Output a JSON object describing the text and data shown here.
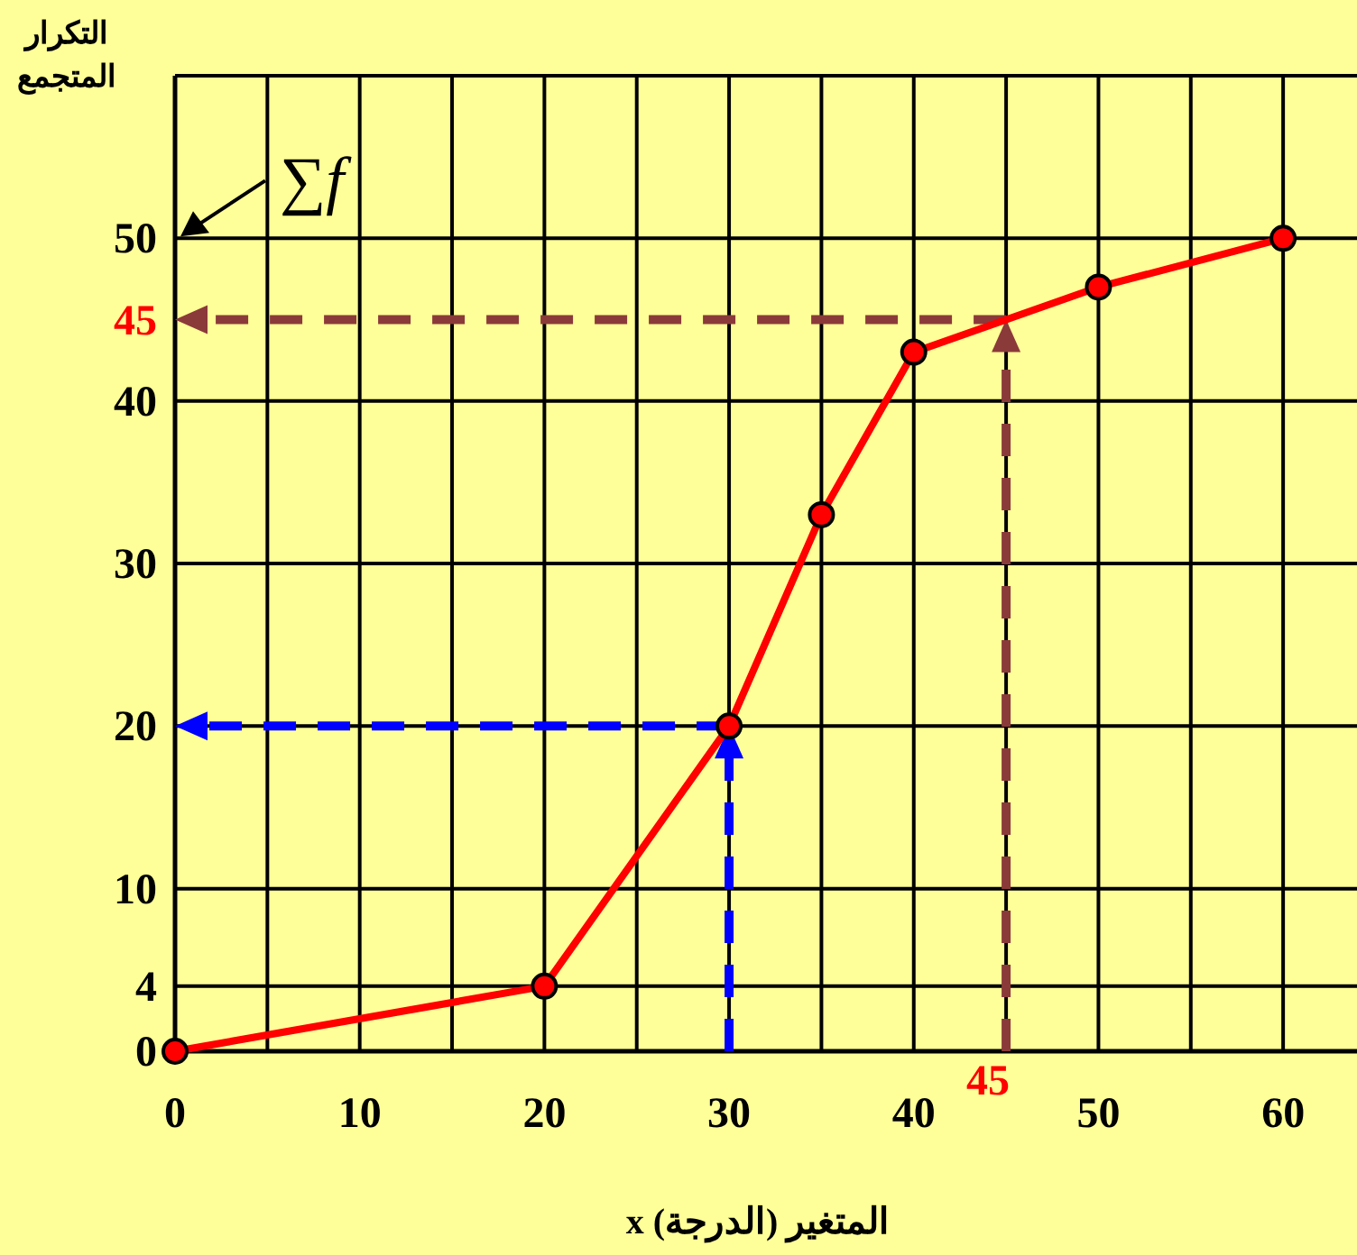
{
  "chart_data": {
    "type": "line",
    "ylabel": "التكرار المتجمع",
    "xlabel": "المتغير (الدرجة) x",
    "x": [
      0,
      20,
      30,
      35,
      40,
      50,
      60
    ],
    "series": [
      {
        "color": "#ff0000",
        "values": [
          0,
          4,
          20,
          33,
          43,
          47,
          50
        ]
      }
    ],
    "marker": "circle",
    "line_style": "solid",
    "xlim": [
      0,
      64
    ],
    "ylim": [
      0,
      60
    ],
    "xticks": [
      0,
      {
        "value": 5,
        "label": null
      },
      10,
      {
        "value": 15,
        "label": null
      },
      20,
      {
        "value": 25,
        "label": null
      },
      30,
      {
        "value": 35,
        "label": null
      },
      40,
      {
        "value": 45,
        "label": null
      },
      50,
      {
        "value": 55,
        "label": null
      },
      60
    ],
    "yticks": [
      0,
      4,
      10,
      20,
      30,
      40,
      50,
      {
        "value": 60,
        "label": null
      }
    ],
    "grid": true,
    "ref_lines": [
      {
        "axis": "y",
        "value": 45,
        "label": "45",
        "color": "#8b3a3a",
        "line_style": "dashed"
      },
      {
        "axis": "x",
        "value": 45,
        "label": "45",
        "color": "#8b3a3a",
        "line_style": "dashed"
      },
      {
        "axis": "y",
        "value": 20,
        "color": "#0000ff",
        "line_style": "dashed"
      },
      {
        "axis": "x",
        "value": 30,
        "color": "#0000ff",
        "line_style": "dashed"
      }
    ],
    "annotations": [
      "∑f"
    ]
  }
}
